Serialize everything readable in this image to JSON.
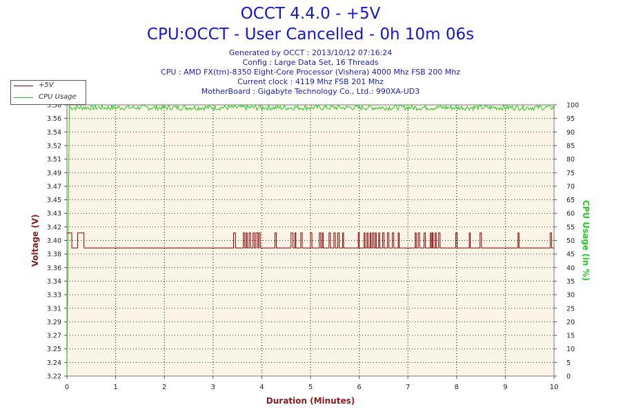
{
  "header": {
    "title": "OCCT 4.4.0 - +5V",
    "subtitle": "CPU:OCCT - User Cancelled - 0h 10m 06s",
    "info_lines": [
      "Generated by OCCT : 2013/10/12 07:16:24",
      "Config : Large Data Set, 16 Threads",
      "CPU : AMD FX(tm)-8350 Eight-Core Processor (Vishera) 4000 Mhz FSB 200 Mhz",
      "Current clock : 4119 Mhz FSB 201 Mhz",
      "MotherBoard : Gigabyte Technology Co., Ltd.: 990XA-UD3"
    ]
  },
  "colors": {
    "voltage": "#8b0000",
    "cpu": "#22cc22",
    "plot_bg": "#faf5e6",
    "grid": "#000000",
    "axis_label": "#8b1a1a"
  },
  "chart_data": {
    "type": "line",
    "xlabel": "Duration (Minutes)",
    "ylabel": "Voltage (V)",
    "y2label": "CPU Usage (in %)",
    "xlim": [
      0,
      10
    ],
    "ylim": [
      3.22,
      3.58
    ],
    "y2lim": [
      0,
      100
    ],
    "x_ticks": [
      "0",
      "1",
      "2",
      "3",
      "4",
      "5",
      "6",
      "7",
      "8",
      "9",
      "10"
    ],
    "y_ticks": [
      "3.22",
      "3.24",
      "3.25",
      "3.27",
      "3.29",
      "3.31",
      "3.33",
      "3.34",
      "3.36",
      "3.38",
      "3.40",
      "3.42",
      "3.43",
      "3.45",
      "3.47",
      "3.49",
      "3.51",
      "3.52",
      "3.54",
      "3.56",
      "3.58"
    ],
    "y2_ticks": [
      "0",
      "5",
      "10",
      "15",
      "20",
      "25",
      "30",
      "35",
      "40",
      "45",
      "50",
      "55",
      "60",
      "65",
      "70",
      "75",
      "80",
      "85",
      "90",
      "95",
      "100"
    ],
    "grid": true,
    "legend_position": "top-left",
    "series": [
      {
        "name": "+5V",
        "axis": "left",
        "baseline": 3.39,
        "spike_value": 3.41,
        "spike_intervals": [
          [
            0.0,
            0.1
          ],
          [
            0.22,
            0.35
          ],
          [
            3.42,
            3.46
          ],
          [
            3.62,
            3.65
          ],
          [
            3.68,
            3.7
          ],
          [
            3.74,
            3.77
          ],
          [
            3.82,
            3.85
          ],
          [
            3.88,
            3.92
          ],
          [
            3.94,
            3.97
          ],
          [
            4.27,
            4.3
          ],
          [
            4.6,
            4.64
          ],
          [
            4.68,
            4.7
          ],
          [
            4.8,
            4.83
          ],
          [
            5.0,
            5.03
          ],
          [
            5.18,
            5.21
          ],
          [
            5.24,
            5.26
          ],
          [
            5.38,
            5.41
          ],
          [
            5.48,
            5.51
          ],
          [
            5.56,
            5.59
          ],
          [
            5.66,
            5.68
          ],
          [
            5.98,
            6.0
          ],
          [
            6.1,
            6.12
          ],
          [
            6.16,
            6.18
          ],
          [
            6.22,
            6.24
          ],
          [
            6.27,
            6.3
          ],
          [
            6.33,
            6.35
          ],
          [
            6.4,
            6.42
          ],
          [
            6.48,
            6.51
          ],
          [
            6.58,
            6.61
          ],
          [
            6.68,
            6.71
          ],
          [
            6.8,
            6.82
          ],
          [
            7.15,
            7.17
          ],
          [
            7.21,
            7.24
          ],
          [
            7.33,
            7.36
          ],
          [
            7.46,
            7.48
          ],
          [
            7.5,
            7.52
          ],
          [
            7.56,
            7.58
          ],
          [
            7.63,
            7.66
          ],
          [
            7.98,
            8.01
          ],
          [
            8.26,
            8.28
          ],
          [
            8.48,
            8.51
          ],
          [
            9.26,
            9.28
          ],
          [
            9.92,
            9.95
          ]
        ]
      },
      {
        "name": "CPU Usage",
        "axis": "right",
        "ramp": [
          [
            0.0,
            0
          ],
          [
            0.03,
            60
          ],
          [
            0.05,
            100
          ]
        ],
        "plateau": 99,
        "noise": 1
      }
    ]
  }
}
